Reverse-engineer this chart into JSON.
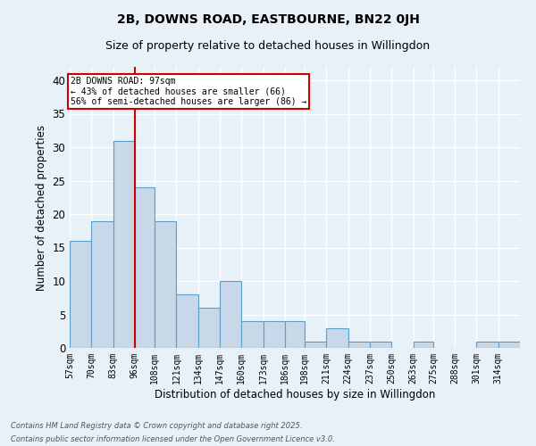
{
  "title1": "2B, DOWNS ROAD, EASTBOURNE, BN22 0JH",
  "title2": "Size of property relative to detached houses in Willingdon",
  "xlabel": "Distribution of detached houses by size in Willingdon",
  "ylabel": "Number of detached properties",
  "bin_labels": [
    "57sqm",
    "70sqm",
    "83sqm",
    "96sqm",
    "108sqm",
    "121sqm",
    "134sqm",
    "147sqm",
    "160sqm",
    "173sqm",
    "186sqm",
    "198sqm",
    "211sqm",
    "224sqm",
    "237sqm",
    "250sqm",
    "263sqm",
    "275sqm",
    "288sqm",
    "301sqm",
    "314sqm"
  ],
  "bin_edges": [
    57,
    70,
    83,
    96,
    108,
    121,
    134,
    147,
    160,
    173,
    186,
    198,
    211,
    224,
    237,
    250,
    263,
    275,
    288,
    301,
    314,
    327
  ],
  "values": [
    16,
    19,
    31,
    24,
    19,
    8,
    6,
    10,
    4,
    4,
    4,
    1,
    3,
    1,
    1,
    0,
    1,
    0,
    0,
    1,
    1
  ],
  "bar_color": "#c8d8e8",
  "bar_edge_color": "#5a9ec9",
  "background_color": "#e8f0f8",
  "grid_color": "#ffffff",
  "vline_x": 96,
  "vline_color": "#cc0000",
  "annotation_title": "2B DOWNS ROAD: 97sqm",
  "annotation_line1": "← 43% of detached houses are smaller (66)",
  "annotation_line2": "56% of semi-detached houses are larger (86) →",
  "annotation_box_color": "#ffffff",
  "annotation_box_edge": "#cc0000",
  "footnote1": "Contains HM Land Registry data © Crown copyright and database right 2025.",
  "footnote2": "Contains public sector information licensed under the Open Government Licence v3.0.",
  "ylim": [
    0,
    42
  ],
  "yticks": [
    0,
    5,
    10,
    15,
    20,
    25,
    30,
    35,
    40
  ]
}
